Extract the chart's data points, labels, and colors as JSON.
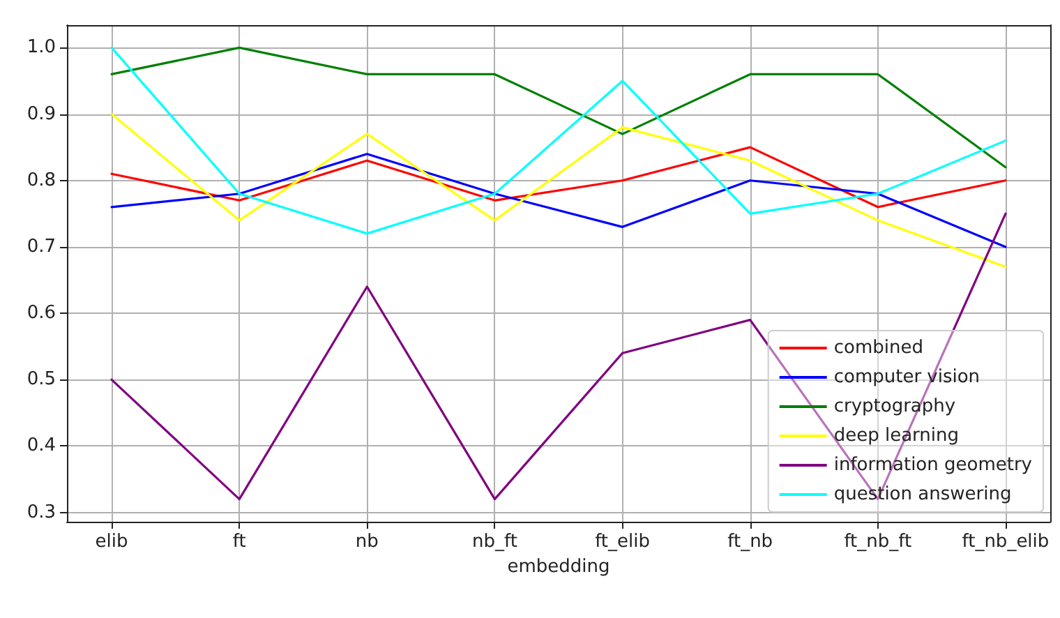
{
  "chart_data": {
    "type": "line",
    "xlabel": "embedding",
    "categories": [
      "elib",
      "ft",
      "nb",
      "nb_ft",
      "ft_elib",
      "ft_nb",
      "ft_nb_ft",
      "ft_nb_elib"
    ],
    "series": [
      {
        "name": "combined",
        "color": "#ff0000",
        "values": [
          0.81,
          0.77,
          0.83,
          0.77,
          0.8,
          0.85,
          0.76,
          0.8
        ]
      },
      {
        "name": "computer vision",
        "color": "#0000ff",
        "values": [
          0.76,
          0.78,
          0.84,
          0.78,
          0.73,
          0.8,
          0.78,
          0.7
        ]
      },
      {
        "name": "cryptography",
        "color": "#008000",
        "values": [
          0.96,
          1.0,
          0.96,
          0.96,
          0.87,
          0.96,
          0.96,
          0.82
        ]
      },
      {
        "name": "deep learning",
        "color": "#ffff00",
        "values": [
          0.9,
          0.74,
          0.87,
          0.74,
          0.88,
          0.83,
          0.74,
          0.67
        ]
      },
      {
        "name": "information geometry",
        "color": "#800080",
        "values": [
          0.5,
          0.32,
          0.64,
          0.32,
          0.54,
          0.59,
          0.32,
          0.75
        ]
      },
      {
        "name": "question answering",
        "color": "#00ffff",
        "values": [
          1.0,
          0.78,
          0.72,
          0.78,
          0.95,
          0.75,
          0.78,
          0.86
        ]
      }
    ],
    "ylim": [
      0.286,
      1.034
    ],
    "yticks": [
      0.3,
      0.4,
      0.5,
      0.6,
      0.7,
      0.8,
      0.9,
      {
        "value": 1.0,
        "label": "1.0"
      }
    ],
    "grid": true,
    "legend": "bottom right",
    "marker": "none",
    "line_style": "solid"
  }
}
